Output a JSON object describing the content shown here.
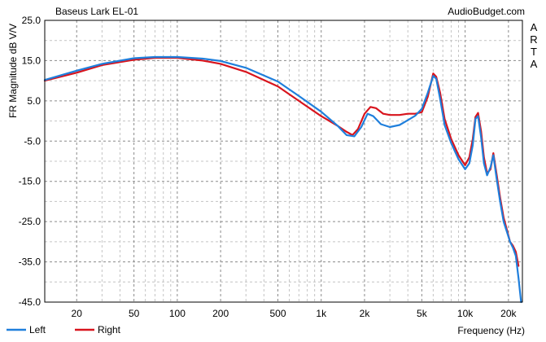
{
  "chart_data": {
    "type": "line",
    "title": "Baseus Lark EL-01",
    "watermark": "AudioBudget.com",
    "side_label": "ARTA",
    "xlabel": "Frequency (Hz)",
    "ylabel": "FR Magnitude dB V/V",
    "x_scale": "log",
    "xlim": [
      12,
      25000
    ],
    "ylim": [
      -45,
      25
    ],
    "grid": true,
    "legend_position": "bottom-left",
    "y_ticks": [
      "25.0",
      "15.0",
      "5.0",
      "-5.0",
      "-15.0",
      "-25.0",
      "-35.0",
      "-45.0"
    ],
    "x_ticks": [
      {
        "value": 20,
        "label": "20"
      },
      {
        "value": 50,
        "label": "50"
      },
      {
        "value": 100,
        "label": "100"
      },
      {
        "value": 200,
        "label": "200"
      },
      {
        "value": 500,
        "label": "500"
      },
      {
        "value": 1000,
        "label": "1k"
      },
      {
        "value": 2000,
        "label": "2k"
      },
      {
        "value": 5000,
        "label": "5k"
      },
      {
        "value": 10000,
        "label": "10k"
      },
      {
        "value": 20000,
        "label": "20k"
      }
    ],
    "series": [
      {
        "name": "Left",
        "color": "#1f7fdc",
        "x": [
          12,
          20,
          30,
          50,
          70,
          100,
          150,
          200,
          300,
          500,
          700,
          1000,
          1300,
          1500,
          1700,
          1900,
          2100,
          2300,
          2600,
          3000,
          3500,
          4000,
          4500,
          5000,
          5500,
          6000,
          6300,
          6700,
          7200,
          8000,
          9000,
          10000,
          10700,
          11300,
          11800,
          12300,
          12900,
          13500,
          14200,
          15000,
          15700,
          16500,
          17500,
          18500,
          19500,
          20500,
          21500,
          22500,
          23500,
          24500
        ],
        "y": [
          10.2,
          12.5,
          14.2,
          15.6,
          15.9,
          15.9,
          15.5,
          14.9,
          13.2,
          9.8,
          6.2,
          2.3,
          -1.2,
          -3.5,
          -3.8,
          -1.5,
          1.8,
          1.2,
          -0.8,
          -1.5,
          -1.0,
          0.2,
          1.3,
          3.0,
          7.0,
          11.2,
          10.5,
          5.5,
          -1.0,
          -5.5,
          -9.5,
          -12.0,
          -10.5,
          -6.0,
          0.5,
          1.2,
          -4.0,
          -10.5,
          -13.5,
          -11.5,
          -8.5,
          -14.0,
          -20.0,
          -25.0,
          -27.5,
          -30.0,
          -31.5,
          -33.5,
          -39.0,
          -45.0
        ]
      },
      {
        "name": "Right",
        "color": "#d8141d",
        "x": [
          12,
          20,
          30,
          50,
          70,
          100,
          150,
          200,
          300,
          500,
          700,
          1000,
          1300,
          1500,
          1650,
          1800,
          2000,
          2200,
          2400,
          2700,
          3000,
          3500,
          4000,
          4500,
          5000,
          5500,
          6000,
          6300,
          6700,
          7200,
          8000,
          9000,
          10000,
          10700,
          11300,
          11800,
          12300,
          12900,
          13500,
          14200,
          15000,
          15700,
          16500,
          17500,
          18500,
          19500,
          20500,
          21500,
          22500,
          23500
        ],
        "y": [
          10.0,
          12.0,
          13.9,
          15.2,
          15.7,
          15.7,
          15.0,
          14.2,
          12.2,
          8.6,
          5.0,
          1.2,
          -1.2,
          -2.7,
          -3.5,
          -2.0,
          1.8,
          3.5,
          3.2,
          1.8,
          1.5,
          1.5,
          1.8,
          1.8,
          2.2,
          6.0,
          11.8,
          11.0,
          7.0,
          0.5,
          -4.5,
          -8.5,
          -11.0,
          -9.0,
          -4.5,
          1.0,
          2.0,
          -2.5,
          -9.0,
          -13.0,
          -12.0,
          -8.0,
          -13.0,
          -19.0,
          -24.0,
          -27.0,
          -30.0,
          -31.0,
          -32.5,
          -36.0
        ]
      }
    ]
  }
}
